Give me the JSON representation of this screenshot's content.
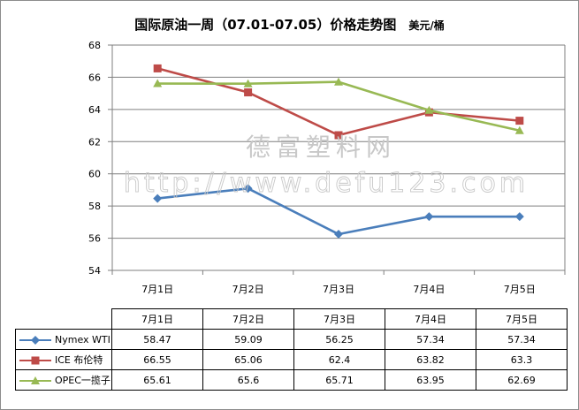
{
  "chart_data": {
    "type": "line",
    "title": "国际原油一周（07.01-07.05）价格走势图",
    "unit_label": "美元/桶",
    "categories": [
      "7月1日",
      "7月2日",
      "7月3日",
      "7月4日",
      "7月5日"
    ],
    "ylim": [
      54,
      68
    ],
    "yticks": [
      54,
      56,
      58,
      60,
      62,
      64,
      66,
      68
    ],
    "grid": true,
    "series": [
      {
        "name": "Nymex WTI",
        "values": [
          58.47,
          59.09,
          56.25,
          57.34,
          57.34
        ],
        "color": "#4a7ebb",
        "marker": "diamond"
      },
      {
        "name": "ICE 布伦特",
        "values": [
          66.55,
          65.06,
          62.4,
          63.82,
          63.3
        ],
        "color": "#be4b48",
        "marker": "square"
      },
      {
        "name": "OPEC一揽子",
        "values": [
          65.61,
          65.6,
          65.71,
          63.95,
          62.69
        ],
        "color": "#98b954",
        "marker": "triangle"
      }
    ],
    "table_values": [
      [
        "58.47",
        "59.09",
        "56.25",
        "57.34",
        "57.34"
      ],
      [
        "66.55",
        "65.06",
        "62.4",
        "63.82",
        "63.3"
      ],
      [
        "65.61",
        "65.6",
        "65.71",
        "63.95",
        "62.69"
      ]
    ]
  },
  "watermark": {
    "line1": "德富塑料网",
    "line2": "http://www.defu123.com"
  }
}
